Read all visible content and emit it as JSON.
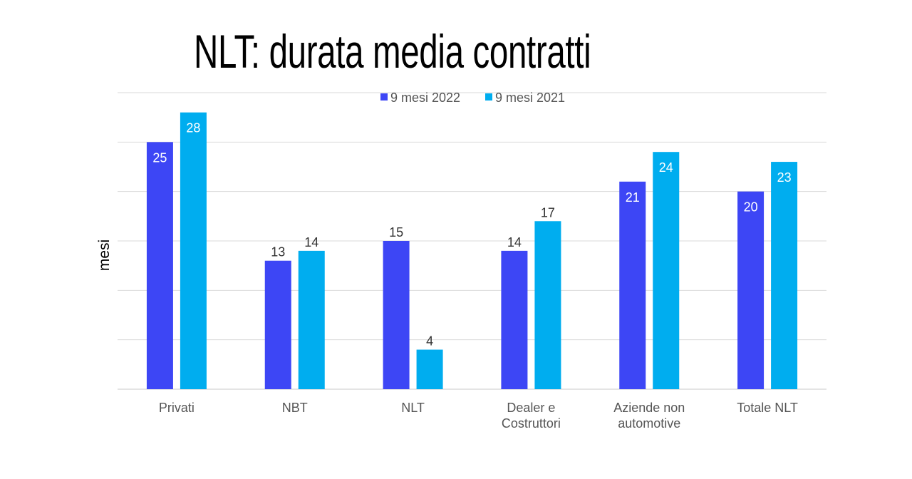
{
  "chart_data": {
    "type": "bar",
    "title": "NLT: durata media contratti",
    "xlabel": "",
    "ylabel": "mesi",
    "ylim": [
      0,
      30
    ],
    "grid": true,
    "legend_position": "top-center",
    "categories": [
      "Privati",
      "NBT",
      "NLT",
      "Dealer e Costruttori",
      "Aziende non automotive",
      "Totale NLT"
    ],
    "category_lines": [
      [
        "Privati"
      ],
      [
        "NBT"
      ],
      [
        "NLT"
      ],
      [
        "Dealer e",
        "Costruttori"
      ],
      [
        "Aziende non",
        "automotive"
      ],
      [
        "Totale NLT"
      ]
    ],
    "series": [
      {
        "name": "9 mesi 2022",
        "color": "#3D46F5",
        "values": [
          25,
          13,
          15,
          14,
          21,
          20
        ]
      },
      {
        "name": "9 mesi 2021",
        "color": "#00ADEF",
        "values": [
          28,
          14,
          4,
          17,
          24,
          23
        ]
      }
    ]
  }
}
